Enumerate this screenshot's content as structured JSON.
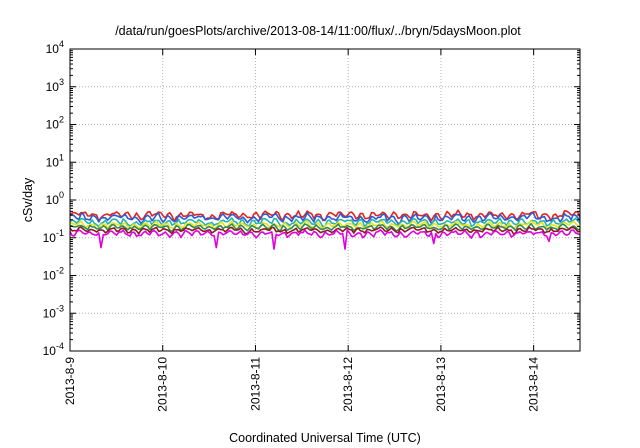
{
  "chart_data": {
    "type": "line",
    "title": "/data/run/goesPlots/archive/2013-08-14/11:00/flux/../bryn/5daysMoon.plot",
    "xlabel": "Coordinated Universal Time (UTC)",
    "ylabel": "cSv/day",
    "yscale": "log",
    "ylim": [
      0.0001,
      10000
    ],
    "y_ticks": [
      {
        "value": 0.0001,
        "base": "10",
        "exp": "-4"
      },
      {
        "value": 0.001,
        "base": "10",
        "exp": "-3"
      },
      {
        "value": 0.01,
        "base": "10",
        "exp": "-2"
      },
      {
        "value": 0.1,
        "base": "10",
        "exp": "-1"
      },
      {
        "value": 1,
        "base": "10",
        "exp": "0"
      },
      {
        "value": 10,
        "base": "10",
        "exp": "1"
      },
      {
        "value": 100,
        "base": "10",
        "exp": "2"
      },
      {
        "value": 1000,
        "base": "10",
        "exp": "3"
      },
      {
        "value": 10000,
        "base": "10",
        "exp": "4"
      }
    ],
    "x_ticks": [
      "2013-8-9",
      "2013-8-10",
      "2013-8-11",
      "2013-8-12",
      "2013-8-13",
      "2013-8-14"
    ],
    "xlim": [
      "2013-08-09 00:00",
      "2013-08-14 12:00"
    ],
    "grid": true,
    "legend": "none",
    "series": [
      {
        "color": "#e0241f",
        "base": 0.4,
        "amp": 0.12,
        "dips": []
      },
      {
        "color": "#2a5bd7",
        "base": 0.34,
        "amp": 0.1,
        "dips": []
      },
      {
        "color": "#22b3b3",
        "base": 0.26,
        "amp": 0.07,
        "dips": []
      },
      {
        "color": "#e6e31a",
        "base": 0.22,
        "amp": 0.05,
        "dips": []
      },
      {
        "color": "#2e8b57",
        "base": 0.19,
        "amp": 0.04,
        "dips": []
      },
      {
        "color": "#8a1c1c",
        "base": 0.16,
        "amp": 0.03,
        "dips": []
      },
      {
        "color": "#e000e0",
        "base": 0.13,
        "amp": 0.03,
        "dips": [
          {
            "x": "2013-08-09 08:00",
            "y": 0.055
          },
          {
            "x": "2013-08-10 14:00",
            "y": 0.055
          },
          {
            "x": "2013-08-11 05:00",
            "y": 0.05
          },
          {
            "x": "2013-08-11 23:00",
            "y": 0.05
          },
          {
            "x": "2013-08-12 22:00",
            "y": 0.07
          },
          {
            "x": "2013-08-14 04:00",
            "y": 0.08
          }
        ]
      }
    ]
  }
}
